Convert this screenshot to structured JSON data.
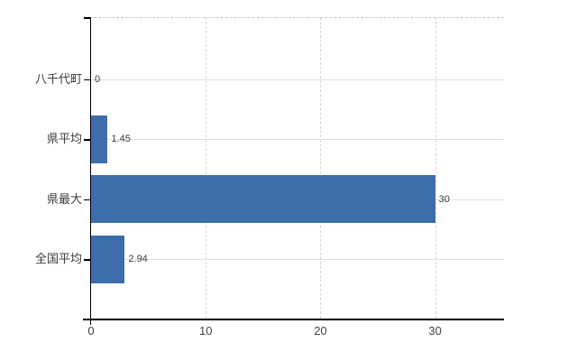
{
  "chart_data": {
    "type": "bar",
    "orientation": "horizontal",
    "title": "",
    "categories": [
      "八千代町",
      "県平均",
      "県最大",
      "全国平均"
    ],
    "values": [
      0,
      1.45,
      30,
      2.94
    ],
    "value_labels": [
      "0",
      "1.45",
      "30",
      "2.94"
    ],
    "x_ticks": [
      0,
      10,
      20,
      30
    ],
    "x_tick_labels": [
      "0",
      "10",
      "20",
      "30"
    ],
    "xlim": [
      0,
      36
    ],
    "grid": true,
    "legend_position": "none",
    "bar_color": "#3e6dab",
    "h_gridline_color": "#dce2dc",
    "v_gridline_color": "#d6d6d6",
    "top_border_color": "#c8c8c8",
    "axis_color": "#000000",
    "text_color": "#3c3c3c"
  }
}
